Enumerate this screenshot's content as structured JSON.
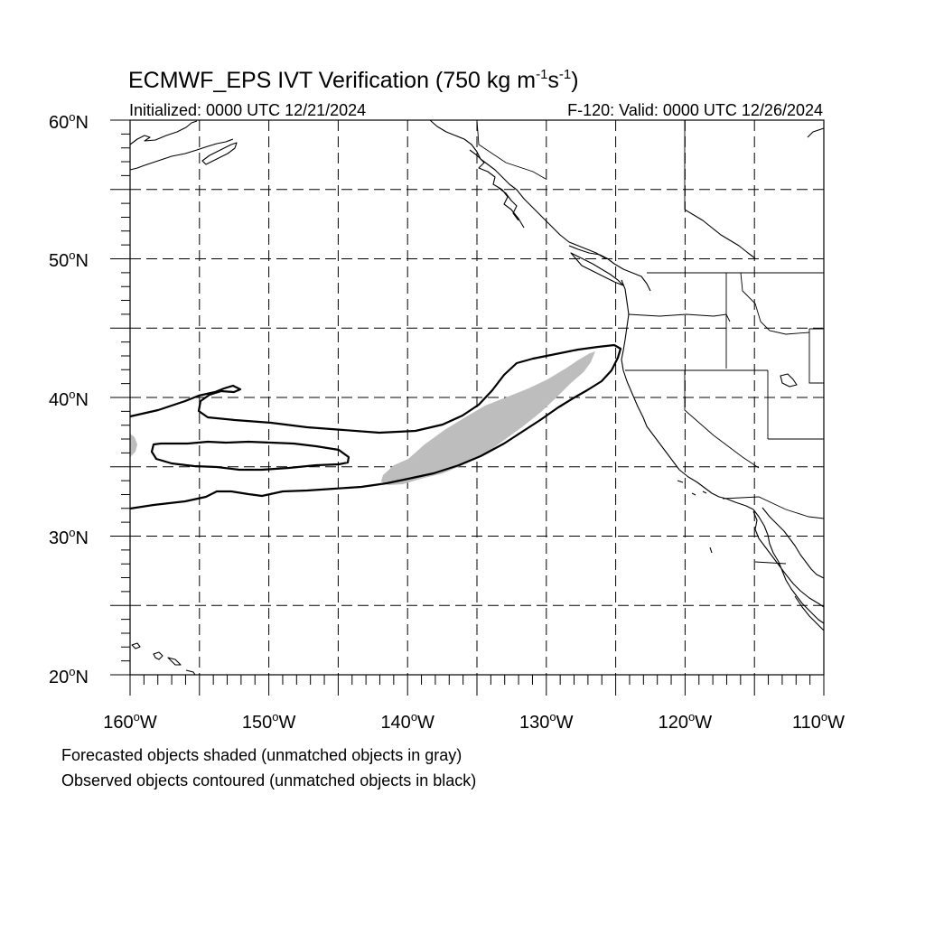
{
  "title": {
    "main": "ECMWF_EPS IVT Verification (750 kg m",
    "sup1": "-1",
    "mid": "s",
    "sup2": "-1",
    "end": ")"
  },
  "subtitle_left": "Initialized: 0000 UTC 12/21/2024",
  "subtitle_right": "F-120: Valid: 0000 UTC 12/26/2024",
  "lat_labels": [
    {
      "deg": "60",
      "suffix": "N"
    },
    {
      "deg": "50",
      "suffix": "N"
    },
    {
      "deg": "40",
      "suffix": "N"
    },
    {
      "deg": "30",
      "suffix": "N"
    },
    {
      "deg": "20",
      "suffix": "N"
    }
  ],
  "lon_labels": [
    {
      "deg": "160",
      "suffix": "W"
    },
    {
      "deg": "150",
      "suffix": "W"
    },
    {
      "deg": "140",
      "suffix": "W"
    },
    {
      "deg": "130",
      "suffix": "W"
    },
    {
      "deg": "120",
      "suffix": "W"
    },
    {
      "deg": "110",
      "suffix": "W"
    }
  ],
  "notes": {
    "line1": "Forecasted objects shaded (unmatched objects in gray)",
    "line2": "Observed objects contoured (unmatched objects in black)"
  },
  "map": {
    "lon_range": [
      -160,
      -110
    ],
    "lat_range": [
      20,
      60
    ],
    "grid_spacing_deg": 5,
    "forecast_object_color": "#bdbdbd",
    "observed_object_color": "#000000"
  }
}
